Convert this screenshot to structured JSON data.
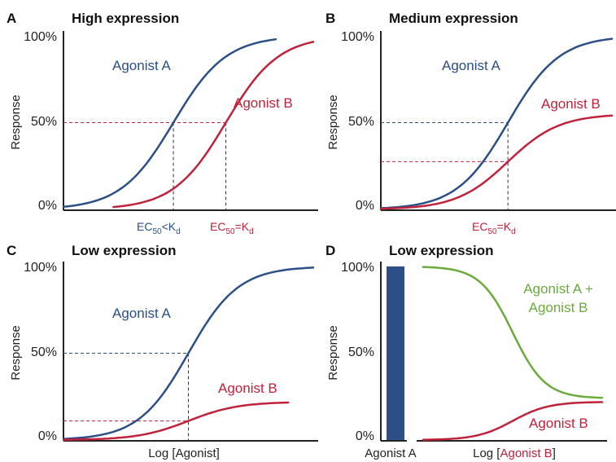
{
  "colors": {
    "agonist_a": "#2b4f86",
    "agonist_b": "#c0223b",
    "combined": "#6aab3c",
    "axis": "#222222",
    "text": "#111111"
  },
  "chart_data": [
    {
      "panel": "A",
      "type": "line",
      "title": "High expression",
      "xlabel": "",
      "ylabel": "Response",
      "yticks": [
        "100%",
        "50%",
        "0%"
      ],
      "ylim": [
        0,
        100
      ],
      "x_scale": "log",
      "series": [
        {
          "name": "Agonist A",
          "color": "#2b4f86",
          "ec50": 0.44,
          "top": 100,
          "slope": 9.5,
          "xrange": [
            0.0,
            0.85
          ]
        },
        {
          "name": "Agonist B",
          "color": "#c0223b",
          "ec50": 0.65,
          "top": 100,
          "slope": 9.5,
          "xrange": [
            0.2,
            1.0
          ]
        }
      ],
      "annotations": [
        {
          "base": "EC",
          "sub": "50",
          "mid": "<K",
          "sub2": "d",
          "color": "#2b4f86",
          "x": 0.44,
          "y": 50
        },
        {
          "base": "EC",
          "sub": "50",
          "mid": "=K",
          "sub2": "d",
          "color": "#c0223b",
          "x": 0.65,
          "y": 50
        }
      ]
    },
    {
      "panel": "B",
      "type": "line",
      "title": "Medium expression",
      "xlabel": "",
      "ylabel": "Response",
      "yticks": [
        "100%",
        "50%",
        "0%"
      ],
      "ylim": [
        0,
        100
      ],
      "x_scale": "log",
      "series": [
        {
          "name": "Agonist A",
          "color": "#2b4f86",
          "ec50": 0.55,
          "top": 100,
          "slope": 9.0,
          "xrange": [
            0.0,
            1.0
          ]
        },
        {
          "name": "Agonist B",
          "color": "#c0223b",
          "ec50": 0.55,
          "top": 55,
          "slope": 9.0,
          "xrange": [
            0.0,
            1.0
          ]
        }
      ],
      "annotations": [
        {
          "base": "EC",
          "sub": "50",
          "mid": "=K",
          "sub2": "d",
          "color": "#c0223b",
          "x": 0.55,
          "y": 50
        }
      ]
    },
    {
      "panel": "C",
      "type": "line",
      "title": "Low expression",
      "xlabel": "Log [Agonist]",
      "ylabel": "Response",
      "yticks": [
        "100%",
        "50%",
        "0%"
      ],
      "ylim": [
        0,
        100
      ],
      "x_scale": "log",
      "series": [
        {
          "name": "Agonist A",
          "color": "#2b4f86",
          "ec50": 0.5,
          "top": 100,
          "slope": 10.0,
          "xrange": [
            0.0,
            1.0
          ]
        },
        {
          "name": "Agonist B",
          "color": "#c0223b",
          "ec50": 0.5,
          "top": 22,
          "slope": 10.0,
          "xrange": [
            0.0,
            0.9
          ]
        }
      ],
      "annotations": []
    },
    {
      "panel": "D",
      "type": "bar+line",
      "title": "Low expression",
      "xlabel_parts": [
        "Log [",
        "Agonist B",
        "]"
      ],
      "bar_label": "Agonist A",
      "ylabel": "Response",
      "yticks": [
        "100%",
        "50%",
        "0%"
      ],
      "ylim": [
        0,
        100
      ],
      "x_scale": "log",
      "bar": {
        "name": "Agonist A",
        "value": 100,
        "color": "#2b4f86"
      },
      "series": [
        {
          "name": "Agonist A + Agonist B",
          "color": "#6aab3c",
          "kind": "decreasing",
          "start": 100,
          "end": 24,
          "ec50": 0.5,
          "slope": 11.0,
          "xrange": [
            0.0,
            1.0
          ]
        },
        {
          "name": "Agonist B",
          "color": "#c0223b",
          "kind": "increasing",
          "top": 22,
          "ec50": 0.5,
          "slope": 10.0,
          "xrange": [
            0.0,
            1.0
          ]
        }
      ]
    }
  ]
}
